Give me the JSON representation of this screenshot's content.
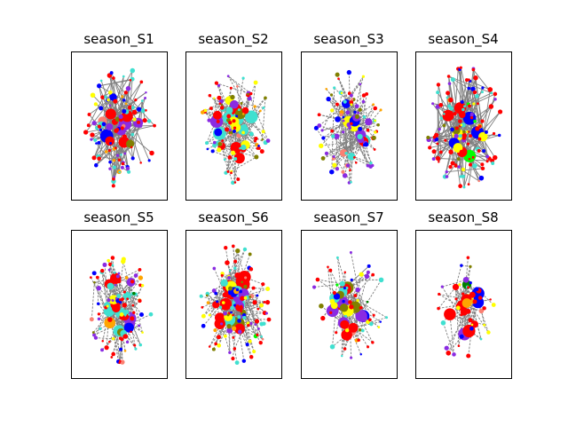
{
  "figure": {
    "panels": [
      {
        "title": "season_S1"
      },
      {
        "title": "season_S2"
      },
      {
        "title": "season_S3"
      },
      {
        "title": "season_S4"
      },
      {
        "title": "season_S5"
      },
      {
        "title": "season_S6"
      },
      {
        "title": "season_S7"
      },
      {
        "title": "season_S8"
      }
    ],
    "node_colors": [
      "#ff0000",
      "#0000ff",
      "#8a2be2",
      "#40e0d0",
      "#ffff00",
      "#808000",
      "#ffa500",
      "#fa8072",
      "#00ff00",
      "#008000"
    ],
    "edge_color": "#808080"
  }
}
